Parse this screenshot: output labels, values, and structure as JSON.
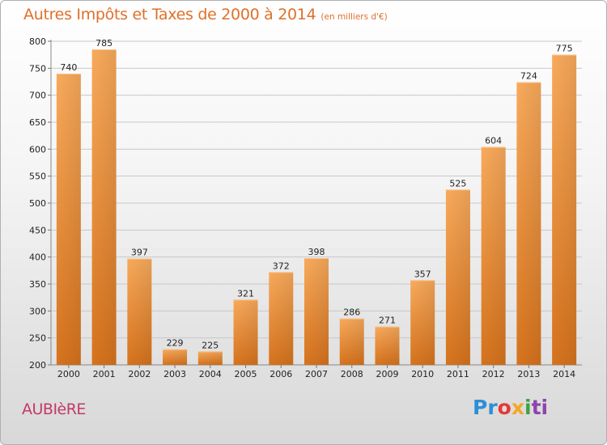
{
  "chart_data": {
    "type": "bar",
    "title": "Autres Impôts et Taxes de 2000 à 2014",
    "subtitle": "(en milliers d'€)",
    "categories": [
      "2000",
      "2001",
      "2002",
      "2003",
      "2004",
      "2005",
      "2006",
      "2007",
      "2008",
      "2009",
      "2010",
      "2011",
      "2012",
      "2013",
      "2014"
    ],
    "values": [
      740,
      785,
      397,
      229,
      225,
      321,
      372,
      398,
      286,
      271,
      357,
      525,
      604,
      724,
      775
    ],
    "ylim": [
      200,
      800
    ],
    "yticks": [
      200,
      250,
      300,
      350,
      400,
      450,
      500,
      550,
      600,
      650,
      700,
      750,
      800
    ],
    "grid": true,
    "bar_color": "#f39b45",
    "xlabel": "",
    "ylabel": ""
  },
  "footer": {
    "city": "AUBIèRE",
    "brand_parts": [
      "Pr",
      "o",
      "x",
      "i",
      "ti"
    ]
  },
  "colors": {
    "title": "#e0702a",
    "city": "#c23a6a",
    "bar_light": "#f7a85a",
    "bar_dark": "#d8741e"
  }
}
